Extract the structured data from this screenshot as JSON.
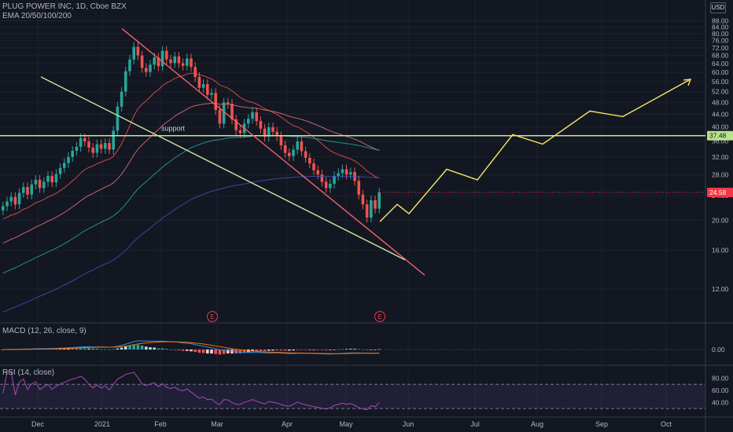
{
  "header": {
    "symbol_line": "PLUG POWER INC, 1D, Cboe BZX",
    "ema_line": "EMA 20/50/100/200",
    "currency": "USD"
  },
  "chart_data": [
    {
      "type": "candlestick",
      "title": "PLUG POWER INC, 1D, Cboe BZX",
      "price_axis": {
        "ticks": [
          "88.00",
          "84.00",
          "80.00",
          "76.00",
          "72.00",
          "68.00",
          "64.00",
          "60.00",
          "56.00",
          "52.00",
          "48.00",
          "44.00",
          "40.00",
          "36.00",
          "32.00",
          "28.00",
          "24.00",
          "20.00",
          "16.00",
          "12.00"
        ],
        "log_scale": true,
        "range": [
          9.5,
          98
        ]
      },
      "time_axis": [
        "Dec",
        "2021",
        "Feb",
        "Mar",
        "Apr",
        "May",
        "Jun",
        "Jul",
        "Aug",
        "Sep",
        "Oct"
      ],
      "price_markers": [
        {
          "label": "37.48",
          "color": "#b7e38b"
        },
        {
          "label": "24.58",
          "color": "#f23645"
        }
      ],
      "support_line": {
        "label": "support",
        "price": 37.48,
        "color": "#c5e89a"
      },
      "earnings_markers": [
        "E",
        "E"
      ],
      "closes": [
        22.2,
        23.0,
        23.8,
        22.5,
        24.5,
        25.6,
        24.2,
        26.1,
        27.0,
        25.4,
        26.6,
        27.8,
        26.5,
        28.2,
        29.5,
        30.6,
        32.0,
        33.5,
        34.5,
        36.8,
        35.9,
        34.3,
        33.0,
        35.2,
        34.0,
        35.5,
        33.8,
        38.9,
        46.5,
        52.0,
        60.5,
        66.0,
        72.5,
        68.0,
        62.0,
        60.2,
        63.5,
        67.0,
        62.8,
        70.4,
        66.0,
        64.3,
        67.5,
        64.2,
        63.0,
        66.5,
        62.5,
        58.0,
        53.5,
        55.0,
        50.8,
        51.5,
        45.4,
        41.0,
        48.0,
        47.5,
        42.3,
        39.0,
        38.2,
        41.0,
        42.5,
        44.6,
        41.8,
        39.5,
        37.2,
        39.9,
        38.6,
        37.4,
        34.9,
        33.0,
        32.2,
        33.8,
        35.9,
        33.4,
        31.8,
        30.5,
        29.0,
        28.1,
        26.6,
        25.4,
        26.2,
        27.8,
        28.4,
        29.2,
        28.1,
        28.6,
        26.8,
        24.2,
        22.5,
        20.4,
        23.2,
        21.8,
        24.6
      ],
      "ema20_last": 25.0,
      "ema50_last": 31.0,
      "ema100_last": 34.8,
      "ema200_last": 30.0,
      "projection": {
        "label": "projected path",
        "points": [
          19.8,
          22.5,
          21.0,
          29.2,
          27.0,
          37.8,
          35.2,
          45.0,
          43.2,
          57.0
        ]
      },
      "trendlines": [
        "upper falling resistance",
        "lower falling channel line",
        "parallel projection"
      ]
    },
    {
      "type": "line",
      "title": "MACD (12, 26, close, 9)",
      "yticks": [
        "0.00"
      ],
      "series": [
        {
          "name": "MACD",
          "color": "#2196f3"
        },
        {
          "name": "Signal",
          "color": "#ff6d00"
        },
        {
          "name": "Histogram",
          "color": "#26a69a"
        }
      ]
    },
    {
      "type": "line",
      "title": "RSI (14, close)",
      "yticks": [
        "80.00",
        "60.00",
        "40.00"
      ],
      "bands": [
        70,
        30
      ],
      "series": [
        {
          "name": "RSI",
          "color": "#ab47bc"
        }
      ]
    }
  ]
}
